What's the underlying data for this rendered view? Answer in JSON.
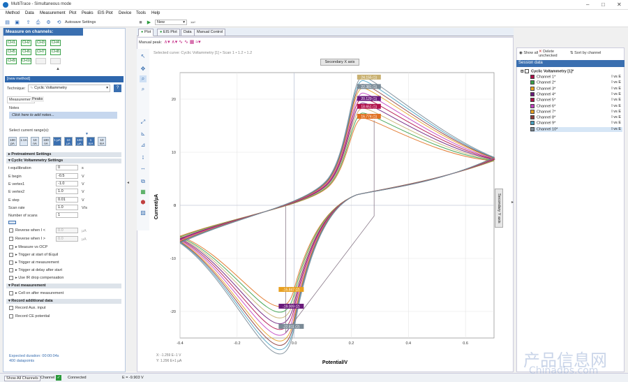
{
  "window": {
    "title": "MultiTrace - Simultaneous mode"
  },
  "menu": [
    "Method",
    "Data",
    "Measurement",
    "Plot",
    "Peaks",
    "EIS Plot",
    "Device",
    "Tools",
    "Help"
  ],
  "toolbar": {
    "autosave": "Autosave Settings",
    "new_label": "New"
  },
  "measure": {
    "heading": "Measure on channels:",
    "channels": [
      "CH1",
      "CH2",
      "CH3",
      "CH4",
      "CH5",
      "CH6",
      "CH7",
      "CH8",
      "CH9",
      "CH10"
    ]
  },
  "method": {
    "heading": "[new method]",
    "technique_label": "Technique:",
    "technique_value": "Cyclic Voltammetry",
    "tabs": [
      "Measurement",
      "Peaks"
    ],
    "notes_label": "Notes",
    "notes_placeholder": "Click here to add notes...",
    "current_range_label": "Select current range(s):",
    "ranges": [
      "100 pA",
      "1 nA",
      "10 nA",
      "100 nA",
      "1 µA",
      "10 µA",
      "100 µA",
      "1 mA",
      "10 mA"
    ],
    "pretreatment": "Pretreatment Settings",
    "cv_settings": "Cyclic Voltammetry Settings",
    "params": [
      {
        "label": "t equilibration",
        "value": "0",
        "unit": "s"
      },
      {
        "label": "E begin",
        "value": "-0.5",
        "unit": "V"
      },
      {
        "label": "E vertex1",
        "value": "-1.0",
        "unit": "V"
      },
      {
        "label": "E vertex2",
        "value": "1.0",
        "unit": "V"
      },
      {
        "label": "E step",
        "value": "0.01",
        "unit": "V"
      },
      {
        "label": "Scan rate",
        "value": "1.0",
        "unit": "V/s"
      },
      {
        "label": "Number of scans",
        "value": "1",
        "unit": ""
      }
    ],
    "reverse1": {
      "label": "Reverse when I <",
      "value": "0.0",
      "unit": "µA"
    },
    "reverse2": {
      "label": "Reverse when I >",
      "value": "0.0",
      "unit": "µA"
    },
    "options": [
      "Measure vs OCP",
      "Trigger at start of tEquil",
      "Trigger at measurement",
      "Trigger at delay after start",
      "Use IR drop compensation"
    ],
    "post": "Post measurement",
    "cell_on": "Cell on after measurement",
    "record_head": "Record additional data",
    "record": [
      "Record Aux. input",
      "Record CE potential"
    ],
    "duration": "Expected duration: 00:00:04s",
    "datapoints": "400 datapoints"
  },
  "plot": {
    "tabs": [
      "Plot",
      "EIS Plot",
      "Data",
      "Manual Control"
    ],
    "manual_peak": "Manual peak:",
    "selected_curve": "Selected curve: Cyclic Voltammetry [1] • Scan 1 • 1.2 • 1.2",
    "secondary_x": "Secondary X axis",
    "secondary_y": "Secondary Y axis",
    "cursor_x": "X: -1.259 E−1 V",
    "cursor_y": "Y: 1.296 E+1 µA"
  },
  "chart_data": {
    "type": "line",
    "xlabel": "Potential/V",
    "ylabel": "Current/µA",
    "xlim": [
      -0.4,
      0.7
    ],
    "ylim": [
      -25,
      25
    ],
    "xticks": [
      "-0.4",
      "-0.2",
      "0.0",
      "0.2",
      "0.4",
      "0.6"
    ],
    "yticks": [
      "20",
      "10",
      "0",
      "-10",
      "-20"
    ],
    "peaks_ox": [
      {
        "label": "24.155 (1)",
        "y": 24.155,
        "color": "#c8b070"
      },
      {
        "label": "22.381 (1)",
        "y": 22.381,
        "color": "#7a8a96"
      },
      {
        "label": "20.129 (1)",
        "y": 20.129,
        "color": "#6a1a7a"
      },
      {
        "label": "18.651 (1)",
        "y": 18.651,
        "color": "#b0104a"
      },
      {
        "label": "16.774 (1)",
        "y": 16.774,
        "color": "#e07020"
      }
    ],
    "peaks_red": [
      {
        "label": "-15.847 (2)",
        "y": -15.847,
        "color": "#e8a020"
      },
      {
        "label": "-19.009 (2)",
        "y": -19.009,
        "color": "#6a1a7a"
      },
      {
        "label": "-22.811 (2)",
        "y": -22.811,
        "color": "#7a8a96"
      }
    ],
    "series_colors": [
      "#e07020",
      "#3aa04a",
      "#c8b070",
      "#6a1a7a",
      "#b0104a",
      "#c040c0",
      "#e8a020",
      "#8a3a3a",
      "#4aa0c0",
      "#7a8a96"
    ]
  },
  "session": {
    "show_all": "Show all",
    "delete_unchecked": "Delete unchecked",
    "sort": "Sort by channel",
    "heading": "Session data",
    "group": "Cyclic Voltammetry [1]*",
    "channels": [
      "Channel 1*",
      "Channel 2*",
      "Channel 3*",
      "Channel 4*",
      "Channel 5*",
      "Channel 6*",
      "Channel 7*",
      "Channel 8*",
      "Channel 9*",
      "Channel 10*"
    ],
    "unit": "I vs E",
    "colors": [
      "#b0104a",
      "#3aa04a",
      "#e8a020",
      "#6a1a7a",
      "#b0104a",
      "#c040c0",
      "#e8a020",
      "#8a3a3a",
      "#4aa0c0",
      "#7a8a96"
    ]
  },
  "status": {
    "show_all": "Show All Channels",
    "channel": "Channel",
    "connected": "Connected",
    "potential": "E = -9.903 V"
  },
  "watermark": {
    "cn": "产品信息网",
    "en": "Chinadbs.com"
  }
}
